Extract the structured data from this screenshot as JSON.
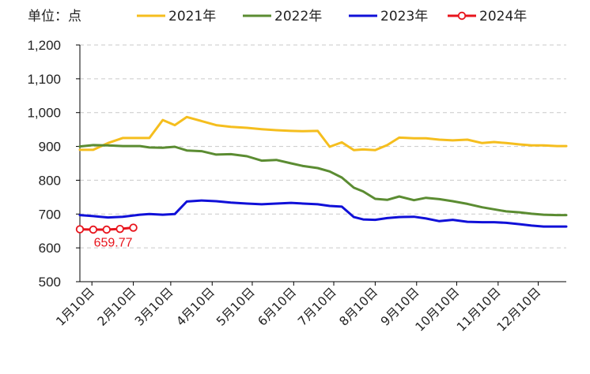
{
  "chart_data": {
    "type": "line",
    "unit_label": "单位：点",
    "xlabel": "",
    "ylabel": "",
    "ylim": [
      500,
      1200
    ],
    "yticks": [
      500,
      600,
      700,
      800,
      900,
      1000,
      1100,
      1200
    ],
    "ytick_labels": [
      "500",
      "600",
      "700",
      "800",
      "900",
      "1,000",
      "1,100",
      "1,200"
    ],
    "grid": "horizontal dashed",
    "legend_position": "top",
    "x_tick_labels": [
      "1月10日",
      "2月10日",
      "3月10日",
      "4月10日",
      "5月10日",
      "6月10日",
      "7月10日",
      "8月10日",
      "9月10日",
      "10月10日",
      "11月10日",
      "12月10日"
    ],
    "x_tick_days": [
      10,
      41,
      69,
      100,
      130,
      161,
      191,
      222,
      253,
      283,
      314,
      344
    ],
    "x_range_days": [
      1,
      365
    ],
    "series": [
      {
        "name": "2021年",
        "color": "#F5BE1E",
        "markers": false,
        "days": [
          1,
          11,
          22,
          33,
          46,
          53,
          63,
          72,
          81,
          92,
          103,
          114,
          126,
          137,
          148,
          159,
          168,
          179,
          188,
          197,
          206,
          213,
          222,
          231,
          240,
          251,
          260,
          270,
          280,
          291,
          302,
          311,
          320,
          330,
          339,
          348,
          358,
          365
        ],
        "values": [
          890,
          890,
          910,
          925,
          925,
          925,
          978,
          963,
          987,
          975,
          963,
          958,
          955,
          951,
          948,
          946,
          945,
          946,
          899,
          912,
          889,
          891,
          889,
          904,
          926,
          924,
          924,
          920,
          918,
          920,
          910,
          913,
          910,
          906,
          903,
          903,
          901,
          901
        ]
      },
      {
        "name": "2022年",
        "color": "#5B8C32",
        "markers": false,
        "days": [
          1,
          11,
          22,
          33,
          46,
          53,
          63,
          72,
          81,
          92,
          103,
          114,
          126,
          137,
          148,
          159,
          168,
          179,
          188,
          197,
          206,
          213,
          222,
          231,
          240,
          251,
          260,
          270,
          280,
          291,
          302,
          311,
          320,
          330,
          339,
          348,
          358,
          365
        ],
        "values": [
          900,
          904,
          903,
          901,
          901,
          897,
          896,
          899,
          888,
          886,
          876,
          877,
          871,
          858,
          860,
          850,
          842,
          836,
          826,
          808,
          778,
          767,
          745,
          742,
          752,
          741,
          748,
          744,
          738,
          730,
          720,
          714,
          708,
          705,
          701,
          698,
          697,
          697
        ]
      },
      {
        "name": "2023年",
        "color": "#1010D8",
        "markers": false,
        "days": [
          1,
          11,
          22,
          33,
          46,
          53,
          63,
          72,
          81,
          92,
          103,
          114,
          126,
          137,
          148,
          159,
          168,
          179,
          188,
          197,
          206,
          213,
          222,
          231,
          240,
          251,
          260,
          270,
          280,
          291,
          302,
          311,
          320,
          330,
          339,
          348,
          358,
          365
        ],
        "values": [
          697,
          694,
          690,
          692,
          698,
          700,
          698,
          700,
          737,
          740,
          738,
          734,
          731,
          729,
          731,
          733,
          731,
          729,
          724,
          722,
          691,
          684,
          683,
          688,
          691,
          692,
          687,
          679,
          683,
          677,
          676,
          676,
          674,
          670,
          666,
          663,
          663,
          663
        ]
      },
      {
        "name": "2024年",
        "color": "#E8141C",
        "markers": true,
        "days": [
          1,
          11,
          21,
          31,
          41
        ],
        "values": [
          655,
          654,
          654,
          656,
          659.77
        ]
      }
    ],
    "annotations": [
      {
        "text": "659.77",
        "series": "2024年",
        "point_index": 4,
        "color": "#E8141C"
      }
    ]
  }
}
